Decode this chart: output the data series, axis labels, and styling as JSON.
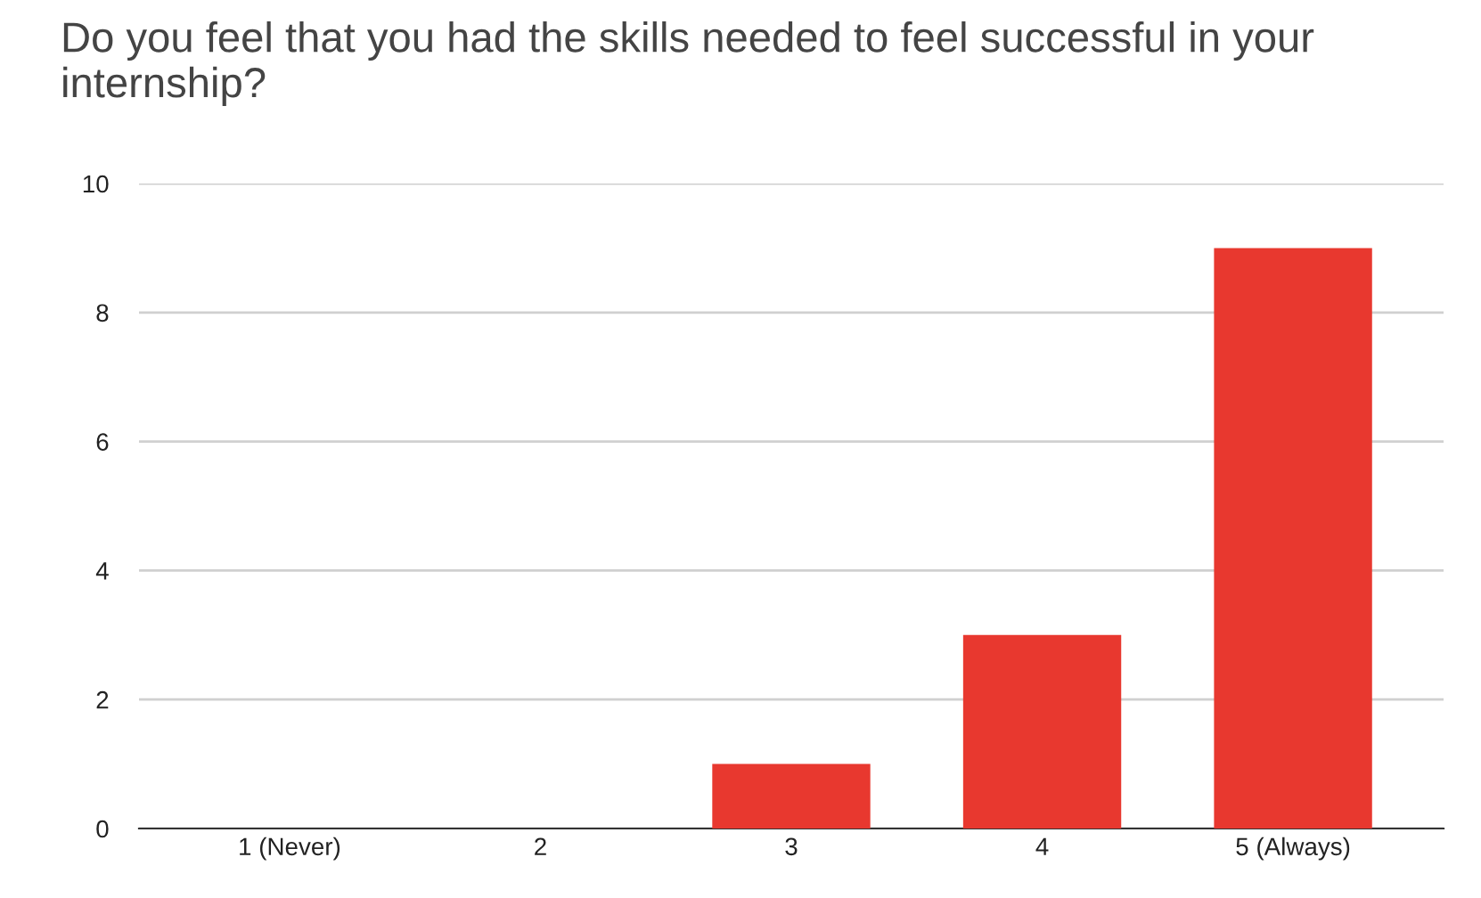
{
  "chart_data": {
    "type": "bar",
    "title": "Do you feel that you had the skills needed to feel successful in your internship?",
    "categories": [
      "1 (Never)",
      "2",
      "3",
      "4",
      "5 (Always)"
    ],
    "values": [
      0,
      0,
      1,
      3,
      9
    ],
    "color": "#e8382f",
    "ylim": [
      0,
      10
    ],
    "yticks": [
      0,
      2,
      4,
      6,
      8,
      10
    ],
    "grid": "y"
  }
}
